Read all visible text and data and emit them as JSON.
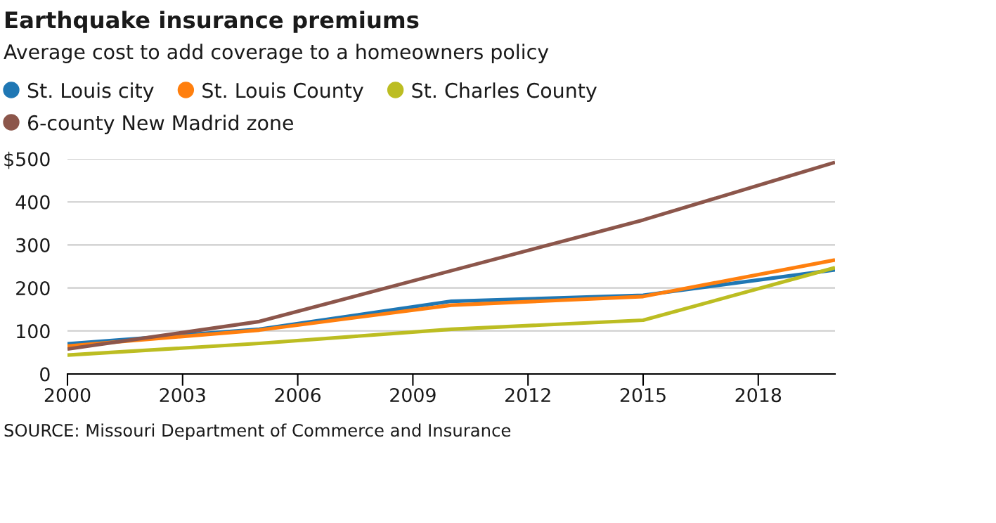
{
  "chart_data": {
    "type": "line",
    "title": "Earthquake insurance premiums",
    "subtitle": "Average cost to add coverage to a homeowners policy",
    "annotations": [
      "SOURCE: Missouri Department of Commerce and Insurance"
    ],
    "x": [
      2000,
      2005,
      2010,
      2015,
      2020
    ],
    "series": [
      {
        "name": "St. Louis city",
        "color": "#1f77b4",
        "values": [
          70,
          104,
          169,
          183,
          242
        ]
      },
      {
        "name": "St. Louis County",
        "color": "#ff7f0e",
        "values": [
          65,
          102,
          160,
          180,
          265
        ]
      },
      {
        "name": "St. Charles County",
        "color": "#bcbd22",
        "values": [
          44,
          71,
          104,
          125,
          247
        ]
      },
      {
        "name": "6-county New Madrid zone",
        "color": "#8c564b",
        "values": [
          58,
          122,
          240,
          358,
          492
        ]
      }
    ],
    "xlim": [
      2000,
      2020
    ],
    "xticks": [
      2000,
      2003,
      2006,
      2009,
      2012,
      2015,
      2018
    ],
    "ylim": [
      0,
      500
    ],
    "yticks": [
      0,
      100,
      200,
      300,
      400,
      {
        "value": 500,
        "label": "$500"
      }
    ],
    "grid": "y",
    "legend": "top"
  }
}
